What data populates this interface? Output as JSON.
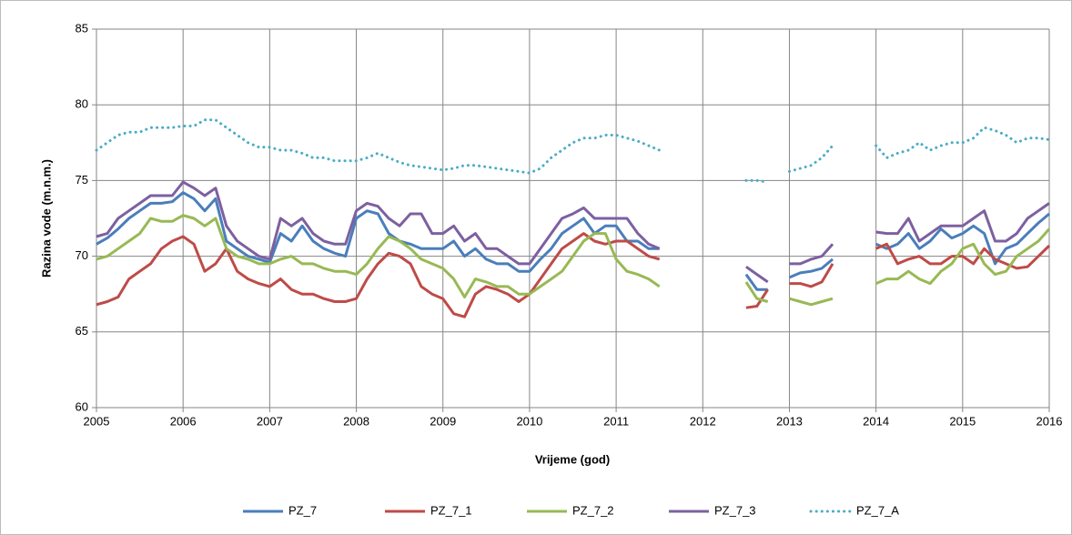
{
  "chart_data": {
    "type": "line",
    "x_label": "Vrijeme (god)",
    "y_label": "Razina vode (m.n.m.)",
    "xlim": [
      2005,
      2016
    ],
    "xticks": [
      2005,
      2006,
      2007,
      2008,
      2009,
      2010,
      2011,
      2012,
      2013,
      2014,
      2015,
      2016
    ],
    "ylim": [
      60,
      85
    ],
    "yticks": [
      60,
      65,
      70,
      75,
      80,
      85
    ],
    "grid": true,
    "legend": "bottom",
    "x": [
      2005,
      2005.125,
      2005.25,
      2005.375,
      2005.5,
      2005.625,
      2005.75,
      2005.875,
      2006,
      2006.125,
      2006.25,
      2006.375,
      2006.5,
      2006.625,
      2006.75,
      2006.875,
      2007,
      2007.125,
      2007.25,
      2007.375,
      2007.5,
      2007.625,
      2007.75,
      2007.875,
      2008,
      2008.125,
      2008.25,
      2008.375,
      2008.5,
      2008.625,
      2008.75,
      2008.875,
      2009,
      2009.125,
      2009.25,
      2009.375,
      2009.5,
      2009.625,
      2009.75,
      2009.875,
      2010,
      2010.125,
      2010.25,
      2010.375,
      2010.5,
      2010.625,
      2010.75,
      2010.875,
      2011,
      2011.125,
      2011.25,
      2011.375,
      2011.5,
      2011.625,
      2011.75,
      2011.875,
      2012,
      2012.125,
      2012.25,
      2012.375,
      2012.5,
      2012.625,
      2012.75,
      2012.875,
      2013,
      2013.125,
      2013.25,
      2013.375,
      2013.5,
      2013.625,
      2013.75,
      2013.875,
      2014,
      2014.125,
      2014.25,
      2014.375,
      2014.5,
      2014.625,
      2014.75,
      2014.875,
      2015,
      2015.125,
      2015.25,
      2015.375,
      2015.5,
      2015.625,
      2015.75,
      2015.875,
      2016
    ],
    "series": [
      {
        "name": "PZ_7",
        "color": "#4a7ebb",
        "style": "solid",
        "values": [
          70.8,
          71.2,
          71.8,
          72.5,
          73.0,
          73.5,
          73.5,
          73.6,
          74.2,
          73.8,
          73.0,
          73.8,
          71.0,
          70.5,
          70.0,
          69.8,
          69.6,
          71.5,
          71.0,
          72.0,
          71.0,
          70.5,
          70.2,
          70.0,
          72.5,
          73.0,
          72.8,
          71.5,
          71.0,
          70.8,
          70.5,
          70.5,
          70.5,
          71.0,
          70.0,
          70.5,
          69.8,
          69.5,
          69.5,
          69.0,
          69.0,
          69.8,
          70.5,
          71.5,
          72.0,
          72.5,
          71.5,
          72.0,
          72.0,
          71.0,
          71.0,
          70.5,
          70.5,
          null,
          null,
          null,
          null,
          null,
          null,
          null,
          68.8,
          67.8,
          67.8,
          null,
          68.6,
          68.9,
          69.0,
          69.2,
          69.8,
          null,
          null,
          null,
          70.8,
          70.5,
          70.8,
          71.5,
          70.5,
          71.0,
          71.8,
          71.2,
          71.5,
          72.0,
          71.5,
          69.5,
          70.5,
          70.8,
          71.5,
          72.2,
          72.8
        ]
      },
      {
        "name": "PZ_7_1",
        "color": "#be4b48",
        "style": "solid",
        "values": [
          66.8,
          67.0,
          67.3,
          68.5,
          69.0,
          69.5,
          70.5,
          71.0,
          71.3,
          70.8,
          69.0,
          69.5,
          70.5,
          69.0,
          68.5,
          68.2,
          68.0,
          68.5,
          67.8,
          67.5,
          67.5,
          67.2,
          67.0,
          67.0,
          67.2,
          68.5,
          69.5,
          70.2,
          70.0,
          69.5,
          68.0,
          67.5,
          67.2,
          66.2,
          66.0,
          67.5,
          68.0,
          67.8,
          67.5,
          67.0,
          67.5,
          68.5,
          69.5,
          70.5,
          71.0,
          71.5,
          71.0,
          70.8,
          71.0,
          71.0,
          70.5,
          70.0,
          69.8,
          null,
          null,
          null,
          null,
          null,
          null,
          null,
          66.6,
          66.7,
          67.8,
          null,
          68.2,
          68.2,
          68.0,
          68.3,
          69.5,
          null,
          null,
          null,
          70.5,
          70.8,
          69.5,
          69.8,
          70.0,
          69.5,
          69.5,
          70.0,
          70.0,
          69.5,
          70.5,
          69.8,
          69.5,
          69.2,
          69.3,
          70.0,
          70.7
        ]
      },
      {
        "name": "PZ_7_2",
        "color": "#98b954",
        "style": "solid",
        "values": [
          69.8,
          70.0,
          70.5,
          71.0,
          71.5,
          72.5,
          72.3,
          72.3,
          72.7,
          72.5,
          72.0,
          72.5,
          70.5,
          70.0,
          69.8,
          69.5,
          69.5,
          69.8,
          70.0,
          69.5,
          69.5,
          69.2,
          69.0,
          69.0,
          68.8,
          69.5,
          70.5,
          71.3,
          71.0,
          70.5,
          69.8,
          69.5,
          69.2,
          68.5,
          67.3,
          68.5,
          68.3,
          68.0,
          68.0,
          67.5,
          67.5,
          68.0,
          68.5,
          69.0,
          70.0,
          71.0,
          71.5,
          71.5,
          69.8,
          69.0,
          68.8,
          68.5,
          68.0,
          null,
          null,
          null,
          null,
          null,
          null,
          null,
          68.3,
          67.2,
          67.0,
          null,
          67.2,
          67.0,
          66.8,
          67.0,
          67.2,
          null,
          null,
          null,
          68.2,
          68.5,
          68.5,
          69.0,
          68.5,
          68.2,
          69.0,
          69.5,
          70.5,
          70.8,
          69.5,
          68.8,
          69.0,
          70.0,
          70.5,
          71.0,
          71.8
        ]
      },
      {
        "name": "PZ_7_3",
        "color": "#7d60a0",
        "style": "solid",
        "values": [
          71.3,
          71.5,
          72.5,
          73.0,
          73.5,
          74.0,
          74.0,
          74.0,
          74.9,
          74.5,
          74.0,
          74.5,
          72.0,
          71.0,
          70.5,
          70.0,
          69.8,
          72.5,
          72.0,
          72.5,
          71.5,
          71.0,
          70.8,
          70.8,
          73.0,
          73.5,
          73.3,
          72.5,
          72.0,
          72.8,
          72.8,
          71.5,
          71.5,
          72.0,
          71.0,
          71.5,
          70.5,
          70.5,
          70.0,
          69.5,
          69.5,
          70.5,
          71.5,
          72.5,
          72.8,
          73.2,
          72.5,
          72.5,
          72.5,
          72.5,
          71.5,
          70.8,
          70.5,
          null,
          null,
          null,
          null,
          null,
          null,
          null,
          69.3,
          68.8,
          68.3,
          null,
          69.5,
          69.5,
          69.8,
          70.0,
          70.8,
          null,
          null,
          null,
          71.6,
          71.5,
          71.5,
          72.5,
          71.0,
          71.5,
          72.0,
          72.0,
          72.0,
          72.5,
          73.0,
          71.0,
          71.0,
          71.5,
          72.5,
          73.0,
          73.5
        ]
      },
      {
        "name": "PZ_7_A",
        "color": "#4bacc6",
        "style": "dotted",
        "values": [
          77.0,
          77.5,
          78.0,
          78.2,
          78.2,
          78.5,
          78.5,
          78.5,
          78.6,
          78.6,
          79.0,
          79.0,
          78.5,
          78.0,
          77.5,
          77.2,
          77.2,
          77.0,
          77.0,
          76.8,
          76.5,
          76.5,
          76.3,
          76.3,
          76.3,
          76.5,
          76.8,
          76.5,
          76.2,
          76.0,
          75.9,
          75.8,
          75.7,
          75.8,
          76.0,
          76.0,
          75.9,
          75.8,
          75.7,
          75.6,
          75.5,
          75.8,
          76.5,
          77.0,
          77.5,
          77.8,
          77.8,
          78.0,
          78.0,
          77.8,
          77.6,
          77.3,
          77.0,
          null,
          null,
          null,
          null,
          null,
          null,
          null,
          75.0,
          75.0,
          74.9,
          null,
          75.6,
          75.8,
          76.0,
          76.5,
          77.3,
          null,
          null,
          null,
          77.3,
          76.5,
          76.8,
          77.0,
          77.5,
          77.0,
          77.3,
          77.5,
          77.5,
          77.8,
          78.5,
          78.3,
          78.0,
          77.5,
          77.8,
          77.8,
          77.7
        ]
      }
    ]
  }
}
